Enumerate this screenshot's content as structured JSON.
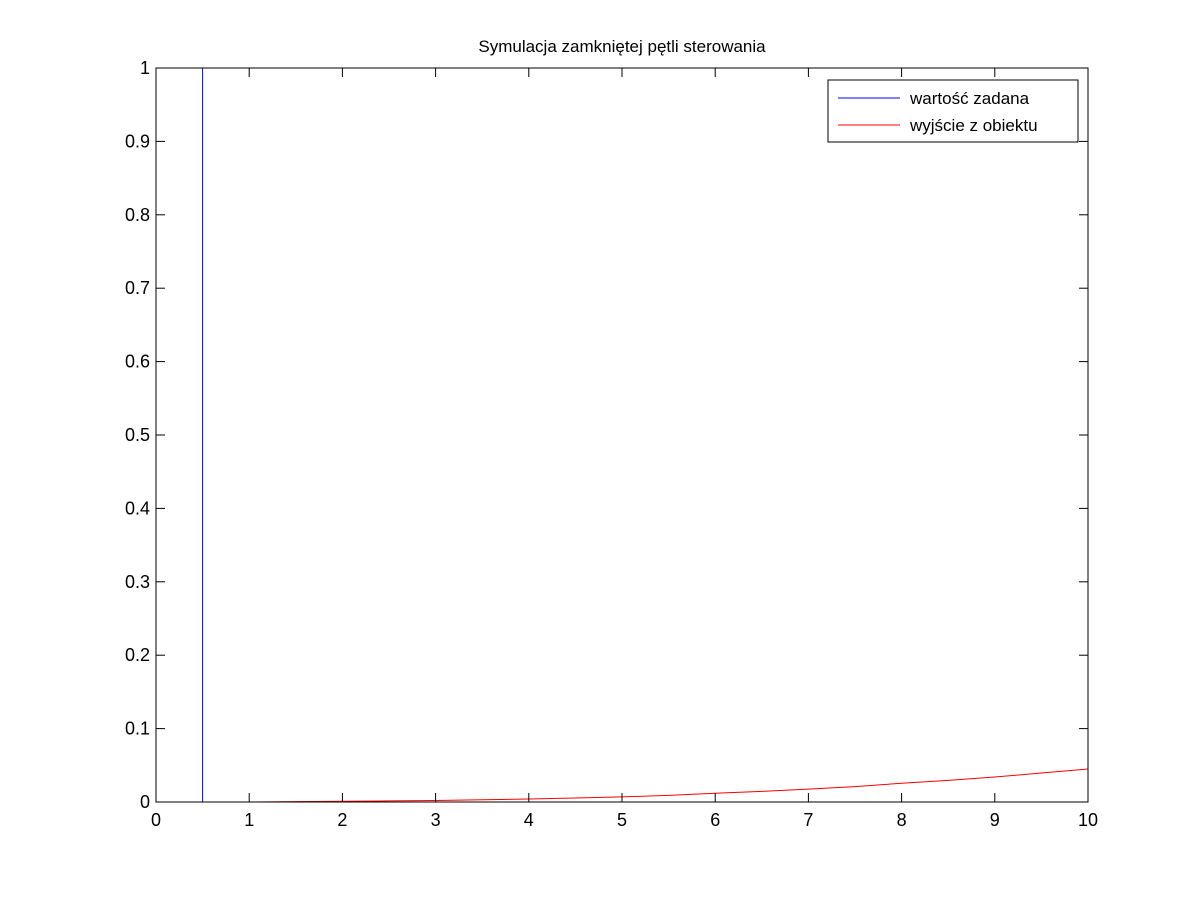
{
  "chart_data": {
    "type": "line",
    "title": "Symulacja zamkniętej pętli sterowania",
    "xlabel": "",
    "ylabel": "",
    "xlim": [
      0,
      10
    ],
    "ylim": [
      0,
      1
    ],
    "x_ticks": [
      0,
      1,
      2,
      3,
      4,
      5,
      6,
      7,
      8,
      9,
      10
    ],
    "y_ticks": [
      0,
      0.1,
      0.2,
      0.3,
      0.4,
      0.5,
      0.6,
      0.7,
      0.8,
      0.9,
      1
    ],
    "x_tick_labels": [
      "0",
      "1",
      "2",
      "3",
      "4",
      "5",
      "6",
      "7",
      "8",
      "9",
      "10"
    ],
    "y_tick_labels": [
      "0",
      "0.1",
      "0.2",
      "0.3",
      "0.4",
      "0.5",
      "0.6",
      "0.7",
      "0.8",
      "0.9",
      "1"
    ],
    "grid": false,
    "legend_position": "top-right",
    "series": [
      {
        "name": "wartość zadana",
        "color": "#0000ff",
        "x": [
          0,
          0.5,
          0.5,
          0.5,
          10
        ],
        "y": [
          0,
          0,
          1,
          0,
          0
        ]
      },
      {
        "name": "wyjście z obiektu",
        "color": "#ff0000",
        "x": [
          0,
          0.5,
          1,
          1.5,
          2,
          2.5,
          3,
          3.5,
          4,
          4.5,
          5,
          5.5,
          6,
          6.5,
          7,
          7.5,
          8,
          8.5,
          9,
          9.5,
          10
        ],
        "y": [
          0,
          0,
          0,
          0.0005,
          0.001,
          0.0015,
          0.002,
          0.003,
          0.004,
          0.0055,
          0.007,
          0.009,
          0.012,
          0.0145,
          0.0175,
          0.021,
          0.0255,
          0.0295,
          0.034,
          0.0395,
          0.045
        ]
      }
    ]
  }
}
